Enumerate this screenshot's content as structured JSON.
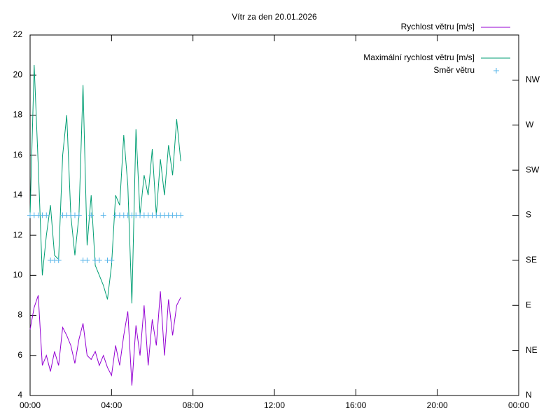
{
  "chart_data": {
    "type": "line",
    "title": "Vítr za den 20.01.2026",
    "x": [
      0,
      0.2,
      0.4,
      0.6,
      0.8,
      1.0,
      1.2,
      1.4,
      1.6,
      1.8,
      2.0,
      2.2,
      2.4,
      2.6,
      2.8,
      3.0,
      3.2,
      3.4,
      3.6,
      3.8,
      4.0,
      4.2,
      4.4,
      4.6,
      4.8,
      5.0,
      5.2,
      5.4,
      5.6,
      5.8,
      6.0,
      6.2,
      6.4,
      6.6,
      6.8,
      7.0,
      7.2,
      7.4
    ],
    "series": [
      {
        "name": "Rychlost větru [m/s]",
        "color": "#9400d3",
        "style": "line",
        "values": [
          7.3,
          8.4,
          9.0,
          5.5,
          6.0,
          5.2,
          6.2,
          5.5,
          7.4,
          7.0,
          6.5,
          5.6,
          6.8,
          7.6,
          6.0,
          5.8,
          6.2,
          5.5,
          6.0,
          5.4,
          5.0,
          6.5,
          5.5,
          7.0,
          8.2,
          4.5,
          7.5,
          6.0,
          8.5,
          5.5,
          7.8,
          6.5,
          9.2,
          6.0,
          8.8,
          7.0,
          8.5,
          8.9
        ]
      },
      {
        "name": "Maximální rychlost větru [m/s]",
        "color": "#009e73",
        "style": "line",
        "values": [
          13.0,
          20.5,
          15.5,
          10.0,
          12.0,
          13.5,
          11.0,
          10.8,
          16.0,
          18.0,
          13.0,
          11.0,
          13.0,
          19.5,
          11.5,
          14.0,
          10.5,
          10.0,
          9.5,
          8.8,
          10.5,
          14.0,
          13.5,
          17.0,
          14.5,
          8.6,
          17.3,
          13.0,
          15.0,
          14.0,
          16.3,
          13.0,
          15.8,
          14.0,
          16.5,
          15.0,
          17.8,
          15.7
        ]
      },
      {
        "name": "Směr větru",
        "color": "#56b4e9",
        "style": "points",
        "axis": "y2",
        "values": [
          180,
          180,
          180,
          180,
          180,
          135,
          135,
          135,
          180,
          180,
          180,
          180,
          180,
          135,
          135,
          180,
          135,
          135,
          180,
          135,
          135,
          180,
          180,
          180,
          180,
          180,
          180,
          180,
          180,
          180,
          180,
          180,
          180,
          180,
          180,
          180,
          180,
          180
        ]
      }
    ],
    "xlim": [
      0,
      24
    ],
    "xticks": [
      {
        "value": 0,
        "label": "00:00"
      },
      {
        "value": 4,
        "label": "04:00"
      },
      {
        "value": 8,
        "label": "08:00"
      },
      {
        "value": 12,
        "label": "12:00"
      },
      {
        "value": 16,
        "label": "16:00"
      },
      {
        "value": 20,
        "label": "20:00"
      },
      {
        "value": 24,
        "label": "00:00"
      }
    ],
    "ylim": [
      4,
      22
    ],
    "yticks": [
      4,
      6,
      8,
      10,
      12,
      14,
      16,
      18,
      20,
      22
    ],
    "y2lim": [
      0,
      360
    ],
    "y2ticks": [
      {
        "value": 0,
        "label": "N"
      },
      {
        "value": 45,
        "label": "NE"
      },
      {
        "value": 90,
        "label": "E"
      },
      {
        "value": 135,
        "label": "SE"
      },
      {
        "value": 180,
        "label": "S"
      },
      {
        "value": 225,
        "label": "SW"
      },
      {
        "value": 270,
        "label": "W"
      },
      {
        "value": 315,
        "label": "NW"
      }
    ],
    "grid": false,
    "legend": "top-right"
  }
}
